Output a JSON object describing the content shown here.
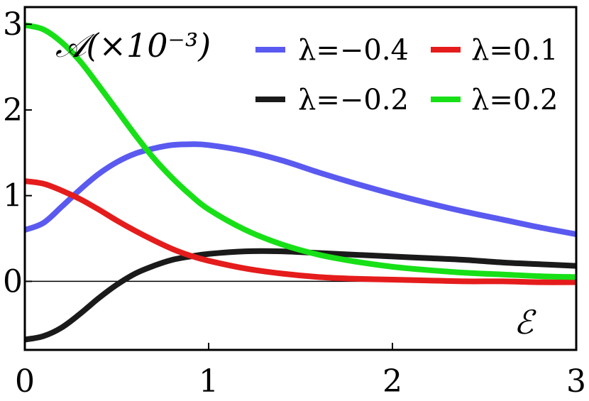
{
  "chart_data": {
    "type": "line",
    "ylabel": "𝒜(×10⁻³)",
    "xlabel": "ℰ",
    "xlim": [
      0,
      3
    ],
    "ylim": [
      -0.8,
      3.2
    ],
    "xticks": [
      0,
      1,
      2,
      3
    ],
    "yticks": [
      0,
      1,
      2,
      3
    ],
    "zero_line": true,
    "legend_position": "top-right",
    "series": [
      {
        "name": "λ=−0.4",
        "color": "#5a5af0",
        "x": [
          0,
          0.1,
          0.2,
          0.3,
          0.4,
          0.5,
          0.6,
          0.7,
          0.8,
          0.9,
          1.0,
          1.2,
          1.4,
          1.6,
          1.8,
          2.0,
          2.2,
          2.4,
          2.6,
          2.8,
          3.0
        ],
        "y": [
          0.6,
          0.68,
          0.87,
          1.07,
          1.25,
          1.39,
          1.49,
          1.55,
          1.59,
          1.6,
          1.59,
          1.52,
          1.41,
          1.27,
          1.14,
          1.02,
          0.91,
          0.81,
          0.72,
          0.63,
          0.55
        ]
      },
      {
        "name": "λ=−0.2",
        "color": "#1a1a1a",
        "x": [
          0,
          0.1,
          0.2,
          0.3,
          0.4,
          0.5,
          0.6,
          0.7,
          0.8,
          0.9,
          1.0,
          1.2,
          1.4,
          1.6,
          1.8,
          2.0,
          2.2,
          2.4,
          2.6,
          2.8,
          3.0
        ],
        "y": [
          -0.68,
          -0.64,
          -0.54,
          -0.38,
          -0.2,
          -0.04,
          0.09,
          0.18,
          0.25,
          0.29,
          0.32,
          0.35,
          0.35,
          0.33,
          0.31,
          0.29,
          0.27,
          0.25,
          0.22,
          0.2,
          0.18
        ]
      },
      {
        "name": "λ=0.1",
        "color": "#e51c1c",
        "x": [
          0,
          0.1,
          0.2,
          0.3,
          0.4,
          0.5,
          0.6,
          0.7,
          0.8,
          0.9,
          1.0,
          1.2,
          1.4,
          1.6,
          1.8,
          2.0,
          2.2,
          2.4,
          2.6,
          2.8,
          3.0
        ],
        "y": [
          1.17,
          1.14,
          1.06,
          0.96,
          0.84,
          0.71,
          0.59,
          0.48,
          0.38,
          0.3,
          0.24,
          0.15,
          0.09,
          0.05,
          0.03,
          0.02,
          0.01,
          0.0,
          0.0,
          -0.01,
          -0.01
        ]
      },
      {
        "name": "λ=0.2",
        "color": "#17e017",
        "x": [
          0,
          0.1,
          0.2,
          0.3,
          0.4,
          0.5,
          0.6,
          0.7,
          0.8,
          0.9,
          1.0,
          1.2,
          1.4,
          1.6,
          1.8,
          2.0,
          2.2,
          2.4,
          2.6,
          2.8,
          3.0
        ],
        "y": [
          2.99,
          2.94,
          2.79,
          2.57,
          2.29,
          2.0,
          1.71,
          1.44,
          1.21,
          1.01,
          0.84,
          0.6,
          0.43,
          0.31,
          0.23,
          0.17,
          0.13,
          0.1,
          0.08,
          0.06,
          0.05
        ]
      }
    ],
    "legend": [
      {
        "label": "λ=−0.4",
        "series": 0
      },
      {
        "label": "λ=0.1",
        "series": 2
      },
      {
        "label": "λ=−0.2",
        "series": 1
      },
      {
        "label": "λ=0.2",
        "series": 3
      }
    ]
  }
}
